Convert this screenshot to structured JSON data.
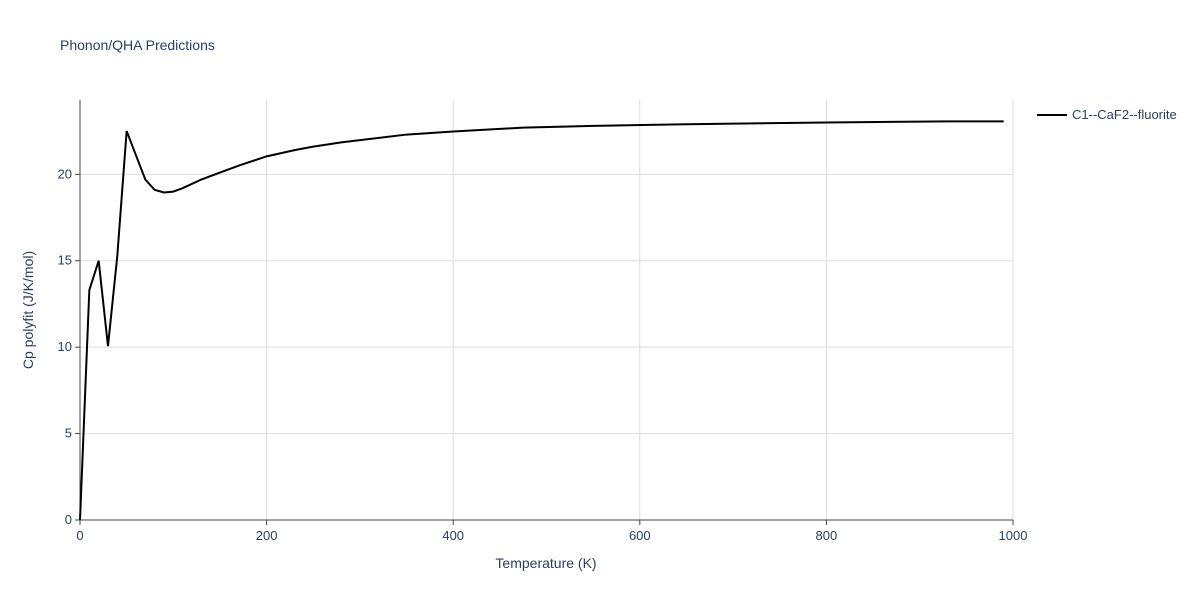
{
  "chart_data": {
    "type": "line",
    "title": "Phonon/QHA Predictions",
    "x_label": "Temperature (K)",
    "y_label": "Cp polyfit (J/K/mol)",
    "x": [
      0,
      10,
      20,
      30,
      40,
      50,
      60,
      70,
      80,
      90,
      100,
      110,
      130,
      150,
      170,
      200,
      230,
      250,
      280,
      350,
      400,
      475,
      550,
      650,
      800,
      930,
      990
    ],
    "series": [
      {
        "name": "C1--CaF2--fluorite",
        "color": "#000000",
        "values": [
          0,
          13.3,
          15.0,
          10.06,
          15.3,
          22.5,
          21.1,
          19.7,
          19.1,
          18.95,
          19.0,
          19.2,
          19.7,
          20.1,
          20.5,
          21.04,
          21.4,
          21.6,
          21.85,
          22.3,
          22.48,
          22.7,
          22.8,
          22.9,
          23.0,
          23.06,
          23.06
        ]
      }
    ],
    "xlim": [
      0,
      1000
    ],
    "ylim": [
      0,
      24.3
    ],
    "xticks": [
      0,
      200,
      400,
      600,
      800,
      1000
    ],
    "yticks": [
      0,
      5,
      10,
      15,
      20
    ],
    "grid": true,
    "legend": "right"
  }
}
